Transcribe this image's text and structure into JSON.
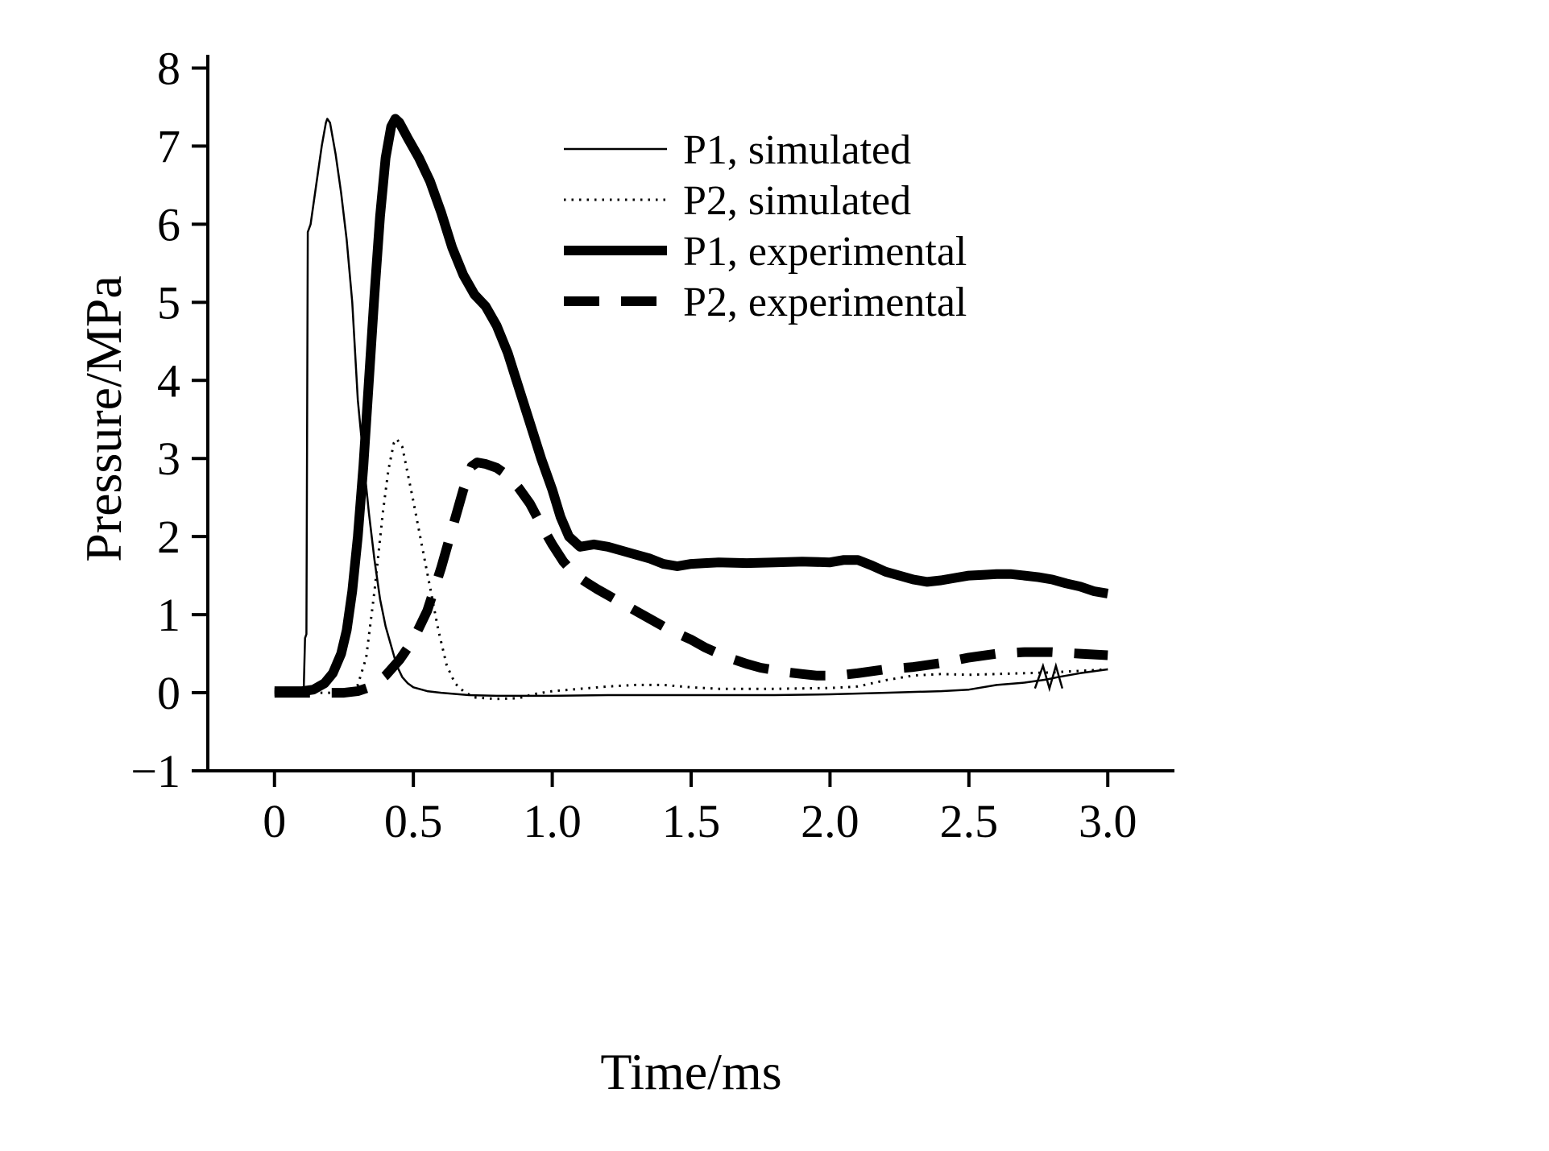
{
  "chart_data": {
    "type": "line",
    "title": "",
    "xlabel": "Time/ms",
    "ylabel": "Pressure/MPa",
    "xlim": [
      -0.24,
      3.24
    ],
    "ylim": [
      -1,
      8.17
    ],
    "grid": false,
    "legend_position": "upper-right-inside",
    "axis_color": "#000000",
    "line_color": "#000000",
    "xticks": [
      {
        "value": 0,
        "label": "0"
      },
      {
        "value": 0.5,
        "label": "0.5"
      },
      {
        "value": 1.0,
        "label": "1.0"
      },
      {
        "value": 1.5,
        "label": "1.5"
      },
      {
        "value": 2.0,
        "label": "2.0"
      },
      {
        "value": 2.5,
        "label": "2.5"
      },
      {
        "value": 3.0,
        "label": "3.0"
      }
    ],
    "yticks": [
      {
        "value": -1,
        "label": "−1"
      },
      {
        "value": 0,
        "label": "0"
      },
      {
        "value": 1,
        "label": "1"
      },
      {
        "value": 2,
        "label": "2"
      },
      {
        "value": 3,
        "label": "3"
      },
      {
        "value": 4,
        "label": "4"
      },
      {
        "value": 5,
        "label": "5"
      },
      {
        "value": 6,
        "label": "6"
      },
      {
        "value": 7,
        "label": "7"
      },
      {
        "value": 8,
        "label": "8"
      }
    ],
    "series": [
      {
        "name": "P1, simulated",
        "style": "thin-solid",
        "points": [
          [
            0.0,
            0.02
          ],
          [
            0.08,
            0.02
          ],
          [
            0.105,
            0.02
          ],
          [
            0.11,
            0.7
          ],
          [
            0.115,
            0.75
          ],
          [
            0.12,
            5.9
          ],
          [
            0.125,
            5.95
          ],
          [
            0.13,
            6.0
          ],
          [
            0.15,
            6.5
          ],
          [
            0.17,
            7.0
          ],
          [
            0.185,
            7.3
          ],
          [
            0.19,
            7.35
          ],
          [
            0.2,
            7.3
          ],
          [
            0.22,
            6.9
          ],
          [
            0.24,
            6.4
          ],
          [
            0.26,
            5.8
          ],
          [
            0.28,
            5.0
          ],
          [
            0.3,
            3.75
          ],
          [
            0.32,
            3.0
          ],
          [
            0.34,
            2.3
          ],
          [
            0.36,
            1.7
          ],
          [
            0.38,
            1.2
          ],
          [
            0.4,
            0.85
          ],
          [
            0.42,
            0.6
          ],
          [
            0.44,
            0.35
          ],
          [
            0.46,
            0.2
          ],
          [
            0.48,
            0.12
          ],
          [
            0.5,
            0.07
          ],
          [
            0.55,
            0.02
          ],
          [
            0.6,
            0.0
          ],
          [
            0.7,
            -0.03
          ],
          [
            0.8,
            -0.04
          ],
          [
            0.9,
            -0.04
          ],
          [
            1.0,
            -0.04
          ],
          [
            1.2,
            -0.03
          ],
          [
            1.4,
            -0.03
          ],
          [
            1.6,
            -0.03
          ],
          [
            1.8,
            -0.03
          ],
          [
            2.0,
            -0.02
          ],
          [
            2.2,
            0.0
          ],
          [
            2.4,
            0.02
          ],
          [
            2.5,
            0.04
          ],
          [
            2.6,
            0.1
          ],
          [
            2.7,
            0.13
          ],
          [
            2.78,
            0.17
          ],
          [
            2.82,
            0.2
          ],
          [
            2.9,
            0.25
          ],
          [
            3.0,
            0.3
          ]
        ]
      },
      {
        "name": "P2, simulated",
        "style": "dotted",
        "points": [
          [
            0.0,
            0.0
          ],
          [
            0.2,
            0.0
          ],
          [
            0.27,
            0.02
          ],
          [
            0.3,
            0.1
          ],
          [
            0.33,
            0.45
          ],
          [
            0.36,
            1.3
          ],
          [
            0.39,
            2.3
          ],
          [
            0.41,
            2.85
          ],
          [
            0.43,
            3.2
          ],
          [
            0.44,
            3.25
          ],
          [
            0.46,
            3.15
          ],
          [
            0.48,
            2.8
          ],
          [
            0.5,
            2.45
          ],
          [
            0.53,
            1.9
          ],
          [
            0.56,
            1.35
          ],
          [
            0.59,
            0.8
          ],
          [
            0.62,
            0.35
          ],
          [
            0.65,
            0.12
          ],
          [
            0.68,
            0.02
          ],
          [
            0.72,
            -0.06
          ],
          [
            0.8,
            -0.08
          ],
          [
            0.88,
            -0.07
          ],
          [
            0.93,
            -0.02
          ],
          [
            1.0,
            0.02
          ],
          [
            1.1,
            0.05
          ],
          [
            1.2,
            0.08
          ],
          [
            1.3,
            0.1
          ],
          [
            1.4,
            0.1
          ],
          [
            1.5,
            0.07
          ],
          [
            1.6,
            0.05
          ],
          [
            1.8,
            0.05
          ],
          [
            2.0,
            0.06
          ],
          [
            2.1,
            0.08
          ],
          [
            2.2,
            0.16
          ],
          [
            2.3,
            0.22
          ],
          [
            2.4,
            0.24
          ],
          [
            2.5,
            0.23
          ],
          [
            2.6,
            0.24
          ],
          [
            2.7,
            0.25
          ],
          [
            2.8,
            0.26
          ],
          [
            2.9,
            0.28
          ],
          [
            3.0,
            0.3
          ]
        ]
      },
      {
        "name": "P1, experimental",
        "style": "thick-solid",
        "points": [
          [
            0.0,
            0.02
          ],
          [
            0.1,
            0.02
          ],
          [
            0.14,
            0.04
          ],
          [
            0.18,
            0.12
          ],
          [
            0.21,
            0.25
          ],
          [
            0.24,
            0.5
          ],
          [
            0.26,
            0.8
          ],
          [
            0.28,
            1.3
          ],
          [
            0.3,
            2.0
          ],
          [
            0.32,
            2.9
          ],
          [
            0.34,
            4.0
          ],
          [
            0.36,
            5.1
          ],
          [
            0.38,
            6.1
          ],
          [
            0.4,
            6.85
          ],
          [
            0.42,
            7.25
          ],
          [
            0.435,
            7.35
          ],
          [
            0.45,
            7.3
          ],
          [
            0.48,
            7.1
          ],
          [
            0.52,
            6.85
          ],
          [
            0.56,
            6.55
          ],
          [
            0.6,
            6.15
          ],
          [
            0.64,
            5.7
          ],
          [
            0.68,
            5.35
          ],
          [
            0.72,
            5.1
          ],
          [
            0.76,
            4.95
          ],
          [
            0.8,
            4.7
          ],
          [
            0.84,
            4.35
          ],
          [
            0.88,
            3.9
          ],
          [
            0.92,
            3.45
          ],
          [
            0.96,
            3.0
          ],
          [
            1.0,
            2.6
          ],
          [
            1.03,
            2.25
          ],
          [
            1.06,
            2.0
          ],
          [
            1.1,
            1.87
          ],
          [
            1.15,
            1.9
          ],
          [
            1.2,
            1.87
          ],
          [
            1.25,
            1.82
          ],
          [
            1.3,
            1.77
          ],
          [
            1.35,
            1.72
          ],
          [
            1.4,
            1.65
          ],
          [
            1.45,
            1.62
          ],
          [
            1.5,
            1.65
          ],
          [
            1.55,
            1.66
          ],
          [
            1.6,
            1.67
          ],
          [
            1.7,
            1.66
          ],
          [
            1.8,
            1.67
          ],
          [
            1.9,
            1.68
          ],
          [
            2.0,
            1.67
          ],
          [
            2.05,
            1.7
          ],
          [
            2.1,
            1.7
          ],
          [
            2.15,
            1.63
          ],
          [
            2.2,
            1.55
          ],
          [
            2.25,
            1.5
          ],
          [
            2.3,
            1.45
          ],
          [
            2.35,
            1.42
          ],
          [
            2.4,
            1.44
          ],
          [
            2.45,
            1.47
          ],
          [
            2.5,
            1.5
          ],
          [
            2.55,
            1.51
          ],
          [
            2.6,
            1.52
          ],
          [
            2.65,
            1.52
          ],
          [
            2.7,
            1.5
          ],
          [
            2.75,
            1.48
          ],
          [
            2.8,
            1.45
          ],
          [
            2.85,
            1.4
          ],
          [
            2.9,
            1.36
          ],
          [
            2.95,
            1.3
          ],
          [
            3.0,
            1.27
          ]
        ]
      },
      {
        "name": "P2, experimental",
        "style": "thick-dashed",
        "points": [
          [
            0.0,
            0.0
          ],
          [
            0.25,
            0.0
          ],
          [
            0.3,
            0.02
          ],
          [
            0.35,
            0.08
          ],
          [
            0.4,
            0.22
          ],
          [
            0.45,
            0.42
          ],
          [
            0.5,
            0.68
          ],
          [
            0.55,
            1.05
          ],
          [
            0.6,
            1.6
          ],
          [
            0.64,
            2.1
          ],
          [
            0.68,
            2.6
          ],
          [
            0.71,
            2.9
          ],
          [
            0.73,
            2.95
          ],
          [
            0.76,
            2.93
          ],
          [
            0.8,
            2.88
          ],
          [
            0.84,
            2.78
          ],
          [
            0.88,
            2.62
          ],
          [
            0.92,
            2.42
          ],
          [
            0.96,
            2.15
          ],
          [
            1.0,
            1.9
          ],
          [
            1.04,
            1.68
          ],
          [
            1.08,
            1.52
          ],
          [
            1.12,
            1.42
          ],
          [
            1.16,
            1.33
          ],
          [
            1.2,
            1.25
          ],
          [
            1.25,
            1.15
          ],
          [
            1.3,
            1.05
          ],
          [
            1.35,
            0.95
          ],
          [
            1.4,
            0.85
          ],
          [
            1.45,
            0.76
          ],
          [
            1.5,
            0.68
          ],
          [
            1.55,
            0.58
          ],
          [
            1.6,
            0.5
          ],
          [
            1.65,
            0.43
          ],
          [
            1.7,
            0.37
          ],
          [
            1.75,
            0.32
          ],
          [
            1.8,
            0.29
          ],
          [
            1.85,
            0.26
          ],
          [
            1.9,
            0.24
          ],
          [
            1.95,
            0.22
          ],
          [
            2.0,
            0.22
          ],
          [
            2.05,
            0.23
          ],
          [
            2.1,
            0.25
          ],
          [
            2.2,
            0.3
          ],
          [
            2.3,
            0.33
          ],
          [
            2.4,
            0.38
          ],
          [
            2.5,
            0.45
          ],
          [
            2.6,
            0.5
          ],
          [
            2.7,
            0.52
          ],
          [
            2.8,
            0.52
          ],
          [
            2.9,
            0.5
          ],
          [
            3.0,
            0.48
          ]
        ]
      }
    ],
    "annotations": [
      {
        "type": "break-marks",
        "x": 2.79,
        "y": 0.2
      }
    ]
  }
}
